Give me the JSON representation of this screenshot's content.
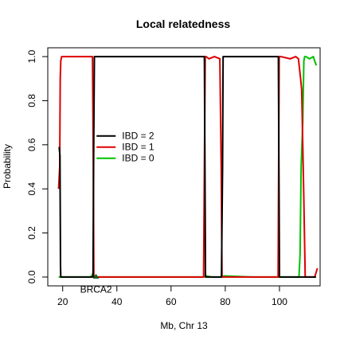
{
  "chart_data": {
    "type": "line",
    "title": "Local relatedness",
    "xlabel": "Mb, Chr 13",
    "ylabel": "Probability",
    "xlim": [
      14.5,
      115
    ],
    "ylim": [
      -0.04,
      1.04
    ],
    "xticks": [
      20,
      40,
      60,
      80,
      100
    ],
    "xtick_labels": [
      "20",
      "40",
      "60",
      "80",
      "100"
    ],
    "yticks": [
      0.0,
      0.2,
      0.4,
      0.6,
      0.8,
      1.0
    ],
    "ytick_labels": [
      "0.0",
      "0.2",
      "0.4",
      "0.6",
      "0.8",
      "1.0"
    ],
    "grid": false,
    "legend_position": "center-left",
    "series": [
      {
        "name": "IBD = 2",
        "color": "#000000",
        "x": [
          18.7,
          19.0,
          19.2,
          19.3,
          30.5,
          31.2,
          31.4,
          31.7,
          32.0,
          72.3,
          72.5,
          72.7,
          73.0,
          78.6,
          79.0,
          79.2,
          99.6,
          99.8,
          100.0,
          113.5
        ],
        "y": [
          0.59,
          0.55,
          0.05,
          0.0,
          0.0,
          0.0,
          0.5,
          1.0,
          1.0,
          1.0,
          0.5,
          0.0,
          0.0,
          0.0,
          0.5,
          1.0,
          1.0,
          0.5,
          0.0,
          0.0
        ]
      },
      {
        "name": "IBD = 1",
        "color": "#dd0000",
        "x": [
          18.5,
          18.7,
          18.9,
          19.1,
          19.3,
          19.6,
          30.0,
          31.0,
          31.3,
          31.5,
          72.0,
          72.3,
          72.6,
          72.9,
          74.0,
          76.0,
          78.0,
          78.5,
          78.8,
          79.2,
          99.5,
          99.7,
          99.9,
          100.5,
          104.0,
          106.0,
          107.0,
          107.8,
          108.2,
          108.6,
          109.0,
          109.5,
          113.0,
          113.5,
          114.0
        ],
        "y": [
          0.4,
          0.45,
          0.5,
          0.9,
          0.98,
          1.0,
          1.0,
          1.0,
          0.5,
          0.0,
          0.0,
          0.5,
          1.0,
          1.0,
          0.99,
          1.0,
          0.99,
          0.5,
          0.0,
          0.0,
          0.0,
          0.5,
          1.0,
          1.0,
          0.99,
          1.0,
          0.99,
          0.9,
          0.85,
          0.6,
          0.35,
          0.0,
          0.0,
          0.02,
          0.04
        ]
      },
      {
        "name": "IBD = 0",
        "color": "#00c000",
        "x": [
          18.5,
          20.0,
          30.0,
          30.8,
          31.2,
          31.6,
          32.5,
          40.0,
          60.0,
          72.0,
          73.0,
          75.0,
          78.0,
          79.5,
          90.0,
          100.0,
          104.0,
          107.2,
          107.6,
          108.0,
          108.3,
          108.6,
          109.0,
          109.3,
          109.8,
          111.0,
          112.5,
          113.0,
          113.6
        ],
        "y": [
          0.0,
          0.0,
          0.0,
          0.005,
          0.02,
          0.005,
          0.0,
          0.0,
          0.0,
          0.0,
          0.005,
          0.0,
          0.0,
          0.005,
          0.0,
          0.0,
          0.0,
          0.0,
          0.1,
          0.5,
          0.6,
          0.7,
          0.98,
          1.0,
          1.0,
          0.99,
          1.0,
          0.98,
          0.96
        ]
      }
    ],
    "annotation": {
      "text": "BRCA2",
      "x": 32.3,
      "y": -0.02
    }
  }
}
